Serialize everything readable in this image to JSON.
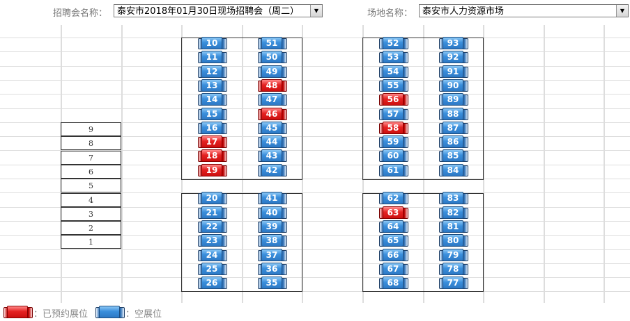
{
  "header": {
    "fair_label": "招聘会名称：",
    "fair_value": "泰安市2018年01月30日现场招聘会（周二）",
    "venue_label": "场地名称：",
    "venue_value": "泰安市人力资源市场"
  },
  "floors": [
    "9",
    "8",
    "7",
    "6",
    "5",
    "4",
    "3",
    "2",
    "1"
  ],
  "columns": [
    {
      "top": [
        10,
        11,
        12,
        13,
        14,
        15,
        16,
        17,
        18,
        19
      ],
      "bottom": [
        20,
        21,
        22,
        23,
        24,
        25,
        26
      ]
    },
    {
      "top": [
        51,
        50,
        49,
        48,
        47,
        46,
        45,
        44,
        43,
        42
      ],
      "bottom": [
        41,
        40,
        39,
        38,
        37,
        36,
        35
      ]
    },
    {
      "top": [
        52,
        53,
        54,
        55,
        56,
        57,
        58,
        59,
        60,
        61
      ],
      "bottom": [
        62,
        63,
        64,
        65,
        66,
        67,
        68
      ]
    },
    {
      "top": [
        93,
        92,
        91,
        90,
        89,
        88,
        87,
        86,
        85,
        84
      ],
      "bottom": [
        83,
        82,
        81,
        80,
        79,
        78,
        77
      ]
    }
  ],
  "reserved": [
    17,
    18,
    19,
    48,
    46,
    56,
    58,
    63
  ],
  "legend": {
    "reserved_label": "：已预约展位",
    "empty_label": "：空展位"
  },
  "colors": {
    "reserved": "#e52222",
    "empty": "#3a8fdc"
  }
}
